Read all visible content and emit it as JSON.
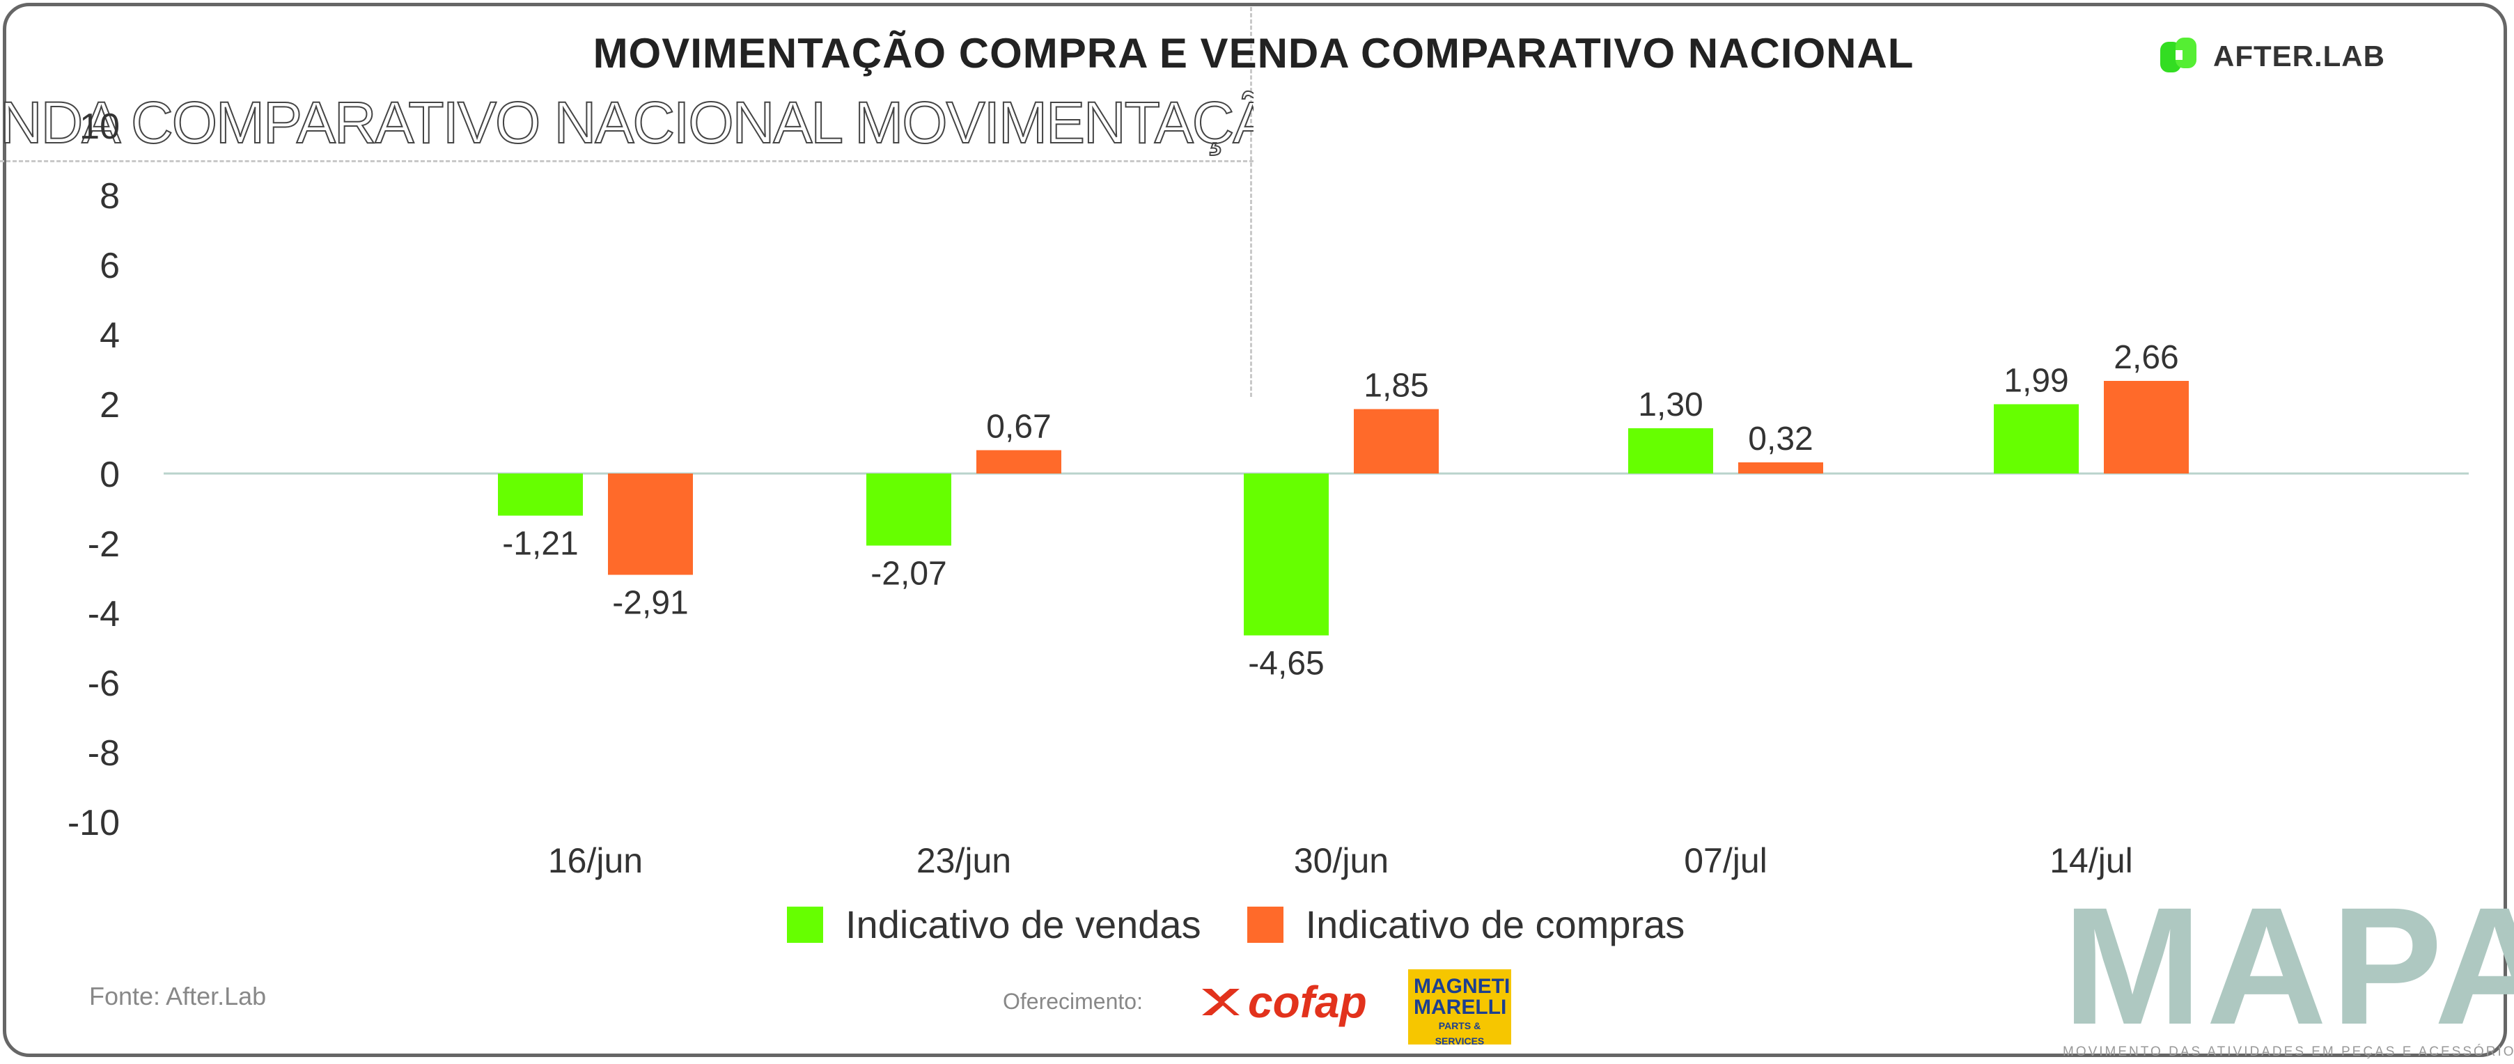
{
  "title": "MOVIMENTAÇÃO COMPRA E VENDA COMPARATIVO NACIONAL",
  "ghost_title": "NDA COMPARATIVO NACIONAL MOVIMENTAÇÃO COMPRA E VE",
  "brand": {
    "name": "AFTER.LAB"
  },
  "chart_data": {
    "type": "bar",
    "categories": [
      "16/jun",
      "23/jun",
      "30/jun",
      "07/jul",
      "14/jul"
    ],
    "series": [
      {
        "name": "Indicativo de vendas",
        "color": "#66ff00",
        "values": [
          -1.21,
          -2.07,
          -4.65,
          1.3,
          1.99
        ],
        "labels": [
          "-1,21",
          "-2,07",
          "-4,65",
          "1,30",
          "1,99"
        ]
      },
      {
        "name": "Indicativo de compras",
        "color": "#ff6a2a",
        "values": [
          -2.91,
          0.67,
          1.85,
          0.32,
          2.66
        ],
        "labels": [
          "-2,91",
          "0,67",
          "1,85",
          "0,32",
          "2,66"
        ]
      }
    ],
    "ylim": [
      -10,
      10
    ],
    "yticks": [
      "10",
      "8",
      "6",
      "4",
      "2",
      "0",
      "-2",
      "-4",
      "-6",
      "-8",
      "-10"
    ],
    "ytick_values": [
      10,
      8,
      6,
      4,
      2,
      0,
      -2,
      -4,
      -6,
      -8,
      -10
    ],
    "legend_position": "bottom-center",
    "grid": false
  },
  "footer": {
    "fonte": "Fonte: After.Lab",
    "oferecimento": "Oferecimento:",
    "sponsor1": "cofap",
    "sponsor2_line1": "MAGNETI",
    "sponsor2_line2": "MARELLI",
    "sponsor2_line3": "PARTS & SERVICES",
    "mapa": "MAPA",
    "mapa_subtitle": "MOVIMENTO DAS ATIVIDADES EM PEÇAS E ACESSÓRIOS"
  }
}
